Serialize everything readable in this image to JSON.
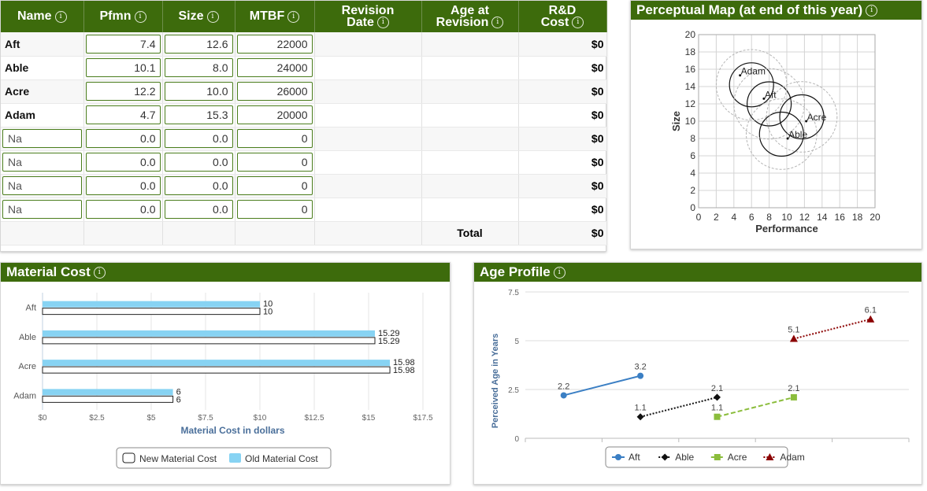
{
  "decision_table": {
    "headers": {
      "name": "Name",
      "pfmn": "Pfmn",
      "size": "Size",
      "mtbf": "MTBF",
      "revision_date_1": "Revision",
      "revision_date_2": "Date",
      "age_at_revision_1": "Age at",
      "age_at_revision_2": "Revision",
      "rd_cost_1": "R&D",
      "rd_cost_2": "Cost"
    },
    "info_glyph": "i",
    "rows": [
      {
        "name": "Aft",
        "pfmn": "7.4",
        "size": "12.6",
        "mtbf": "22000",
        "revision_date": "",
        "age": "",
        "cost": "$0",
        "editable_name": false
      },
      {
        "name": "Able",
        "pfmn": "10.1",
        "size": "8.0",
        "mtbf": "24000",
        "revision_date": "",
        "age": "",
        "cost": "$0",
        "editable_name": false
      },
      {
        "name": "Acre",
        "pfmn": "12.2",
        "size": "10.0",
        "mtbf": "26000",
        "revision_date": "",
        "age": "",
        "cost": "$0",
        "editable_name": false
      },
      {
        "name": "Adam",
        "pfmn": "4.7",
        "size": "15.3",
        "mtbf": "20000",
        "revision_date": "",
        "age": "",
        "cost": "$0",
        "editable_name": false
      },
      {
        "name": "Na",
        "pfmn": "0.0",
        "size": "0.0",
        "mtbf": "0",
        "revision_date": "",
        "age": "",
        "cost": "$0",
        "editable_name": true
      },
      {
        "name": "Na",
        "pfmn": "0.0",
        "size": "0.0",
        "mtbf": "0",
        "revision_date": "",
        "age": "",
        "cost": "$0",
        "editable_name": true
      },
      {
        "name": "Na",
        "pfmn": "0.0",
        "size": "0.0",
        "mtbf": "0",
        "revision_date": "",
        "age": "",
        "cost": "$0",
        "editable_name": true
      },
      {
        "name": "Na",
        "pfmn": "0.0",
        "size": "0.0",
        "mtbf": "0",
        "revision_date": "",
        "age": "",
        "cost": "$0",
        "editable_name": true
      }
    ],
    "total_label": "Total",
    "total_value": "$0"
  },
  "perceptual_map": {
    "title": "Perceptual Map (at end of this year)",
    "chart_data": {
      "type": "scatter",
      "xlabel": "Performance",
      "ylabel": "Size",
      "xlim": [
        0,
        20
      ],
      "ylim": [
        0,
        20
      ],
      "xticks": [
        "0",
        "2",
        "4",
        "6",
        "8",
        "10",
        "12",
        "14",
        "16",
        "18",
        "20"
      ],
      "yticks": [
        "0",
        "2",
        "4",
        "6",
        "8",
        "10",
        "12",
        "14",
        "16",
        "18",
        "20"
      ],
      "grid": true,
      "points": [
        {
          "label": "Adam",
          "x": 4.7,
          "y": 15.3
        },
        {
          "label": "Aft",
          "x": 7.4,
          "y": 12.6
        },
        {
          "label": "Acre",
          "x": 12.2,
          "y": 10.0
        },
        {
          "label": "Able",
          "x": 10.1,
          "y": 8.0
        }
      ],
      "circles": [
        {
          "x": 6.0,
          "y": 14.2,
          "r": 2.5,
          "style": "solid"
        },
        {
          "x": 8.0,
          "y": 12.0,
          "r": 2.5,
          "style": "solid"
        },
        {
          "x": 11.7,
          "y": 10.5,
          "r": 2.5,
          "style": "solid"
        },
        {
          "x": 9.4,
          "y": 8.5,
          "r": 2.5,
          "style": "solid"
        },
        {
          "x": 6.0,
          "y": 14.2,
          "r": 4.0,
          "style": "dashed"
        },
        {
          "x": 8.0,
          "y": 12.0,
          "r": 4.0,
          "style": "dashed"
        },
        {
          "x": 11.7,
          "y": 10.5,
          "r": 4.0,
          "style": "dashed"
        },
        {
          "x": 9.4,
          "y": 8.5,
          "r": 4.0,
          "style": "dashed"
        }
      ]
    }
  },
  "material_cost": {
    "title": "Material Cost",
    "chart_data": {
      "type": "bar",
      "orientation": "horizontal",
      "categories": [
        "Aft",
        "Able",
        "Acre",
        "Adam"
      ],
      "series": [
        {
          "name": "Old Material Cost",
          "values": [
            10,
            15.29,
            15.98,
            6
          ],
          "labels": [
            "10",
            "15.29",
            "15.98",
            "6"
          ],
          "color": "#87d3f3"
        },
        {
          "name": "New Material Cost",
          "values": [
            10,
            15.29,
            15.98,
            6
          ],
          "labels": [
            "10",
            "15.29",
            "15.98",
            "6"
          ],
          "color": "#ffffff"
        }
      ],
      "xlabel": "Material Cost in dollars",
      "xlim": [
        0,
        17.5
      ],
      "xticks": [
        {
          "v": 0,
          "label": "$0"
        },
        {
          "v": 2.5,
          "label": "$2.5"
        },
        {
          "v": 5,
          "label": "$5"
        },
        {
          "v": 7.5,
          "label": "$7.5"
        },
        {
          "v": 10,
          "label": "$10"
        },
        {
          "v": 12.5,
          "label": "$12.5"
        },
        {
          "v": 15,
          "label": "$15"
        },
        {
          "v": 17.5,
          "label": "$17.5"
        }
      ],
      "legend": [
        "New Material Cost",
        "Old Material Cost"
      ],
      "legend_position": "bottom"
    }
  },
  "age_profile": {
    "title": "Age Profile",
    "chart_data": {
      "type": "line",
      "ylabel": "Perceived Age in Years",
      "ylim": [
        0,
        7.5
      ],
      "yticks": [
        {
          "v": 0,
          "label": "0"
        },
        {
          "v": 2.5,
          "label": "2.5"
        },
        {
          "v": 5,
          "label": "5"
        },
        {
          "v": 7.5,
          "label": "7.5"
        }
      ],
      "slots": 5,
      "series": [
        {
          "name": "Aft",
          "color": "#3b7fc4",
          "marker": "circle",
          "dash": "solid",
          "points": [
            {
              "slot": 0,
              "y": 2.2,
              "label": "2.2"
            },
            {
              "slot": 1,
              "y": 3.2,
              "label": "3.2"
            }
          ]
        },
        {
          "name": "Able",
          "color": "#111111",
          "marker": "diamond",
          "dash": "dotted",
          "points": [
            {
              "slot": 1,
              "y": 1.1,
              "label": "1.1"
            },
            {
              "slot": 2,
              "y": 2.1,
              "label": "2.1"
            }
          ]
        },
        {
          "name": "Acre",
          "color": "#8bbd3c",
          "marker": "square",
          "dash": "dashed",
          "points": [
            {
              "slot": 2,
              "y": 1.1,
              "label": "1.1"
            },
            {
              "slot": 3,
              "y": 2.1,
              "label": "2.1"
            }
          ]
        },
        {
          "name": "Adam",
          "color": "#8b0000",
          "marker": "triangle",
          "dash": "dotted",
          "points": [
            {
              "slot": 3,
              "y": 5.1,
              "label": "5.1"
            },
            {
              "slot": 4,
              "y": 6.1,
              "label": "6.1"
            }
          ]
        }
      ],
      "legend_position": "bottom"
    }
  }
}
